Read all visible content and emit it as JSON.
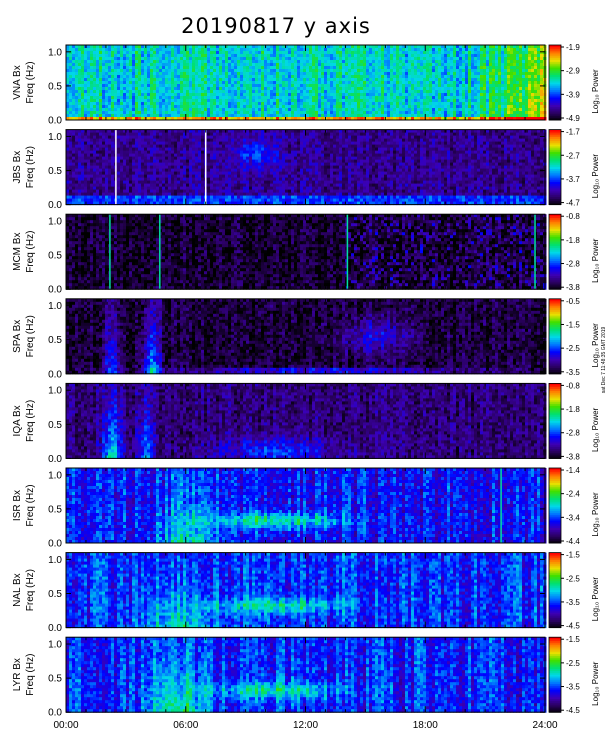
{
  "title": "20190817  y  axis",
  "side_note": "sat Dec 7 11:48:35 GMT 2019",
  "chart_data": {
    "type": "heatmap",
    "title": "20190817  y  axis",
    "xlabel": "",
    "xlim": [
      "00:00",
      "24:00"
    ],
    "x_ticks": [
      "00:00",
      "06:00",
      "12:00",
      "18:00",
      "24:00"
    ],
    "ylim": [
      0,
      1.1
    ],
    "y_ticks": [
      "0.0",
      "0.5",
      "1.0"
    ],
    "colorbar_label": "Log₁₀ Power",
    "colormap": [
      "#000000",
      "#2a0060",
      "#3c00b4",
      "#0000ff",
      "#0078ff",
      "#00d8e8",
      "#00e070",
      "#40e000",
      "#e8e000",
      "#ff8000",
      "#ff0000"
    ],
    "panels": [
      {
        "station": "VNA Bx",
        "ylabel": "VNA Bx\nFreq (Hz)",
        "ylabel1": "VNA Bx",
        "ylabel2": "Freq (Hz)",
        "cbar_ticks": [
          "-1.9",
          "-2.9",
          "-3.9",
          "-4.9"
        ],
        "bg": 0.52
      },
      {
        "station": "JBS Bx",
        "ylabel": "JBS Bx\nFreq (Hz)",
        "ylabel1": "JBS Bx",
        "ylabel2": "Freq (Hz)",
        "cbar_ticks": [
          "-1.7",
          "-2.7",
          "-3.7",
          "-4.7"
        ],
        "bg": 0.16
      },
      {
        "station": "MCM Bx",
        "ylabel": "MCM Bx\nFreq (Hz)",
        "ylabel1": "MCM Bx",
        "ylabel2": "Freq (Hz)",
        "cbar_ticks": [
          "-0.8",
          "-1.8",
          "-2.8",
          "-3.8"
        ],
        "bg": 0.05
      },
      {
        "station": "SPA Bx",
        "ylabel": "SPA Bx\nFreq (Hz)",
        "ylabel1": "SPA Bx",
        "ylabel2": "Freq (Hz)",
        "cbar_ticks": [
          "-0.5",
          "-1.5",
          "-2.5",
          "-3.5"
        ],
        "bg": 0.06
      },
      {
        "station": "IQA Bx",
        "ylabel": "IQA Bx\nFreq (Hz)",
        "ylabel1": "IQA Bx",
        "ylabel2": "Freq (Hz)",
        "cbar_ticks": [
          "-0.8",
          "-1.8",
          "-2.8",
          "-3.8"
        ],
        "bg": 0.13
      },
      {
        "station": "ISR Bx",
        "ylabel": "ISR Bx\nFreq (Hz)",
        "ylabel1": "ISR Bx",
        "ylabel2": "Freq (Hz)",
        "cbar_ticks": [
          "-1.4",
          "-2.4",
          "-3.4",
          "-4.4"
        ],
        "bg": 0.3
      },
      {
        "station": "NAL Bx",
        "ylabel": "NAL Bx\nFreq (Hz)",
        "ylabel1": "NAL Bx",
        "ylabel2": "Freq (Hz)",
        "cbar_ticks": [
          "-1.5",
          "-2.5",
          "-3.5",
          "-4.5"
        ],
        "bg": 0.33
      },
      {
        "station": "LYR Bx",
        "ylabel": "LYR Bx\nFreq (Hz)",
        "ylabel1": "LYR Bx",
        "ylabel2": "Freq (Hz)",
        "cbar_ticks": [
          "-1.5",
          "-2.5",
          "-3.5",
          "-4.5"
        ],
        "bg": 0.32
      }
    ]
  }
}
